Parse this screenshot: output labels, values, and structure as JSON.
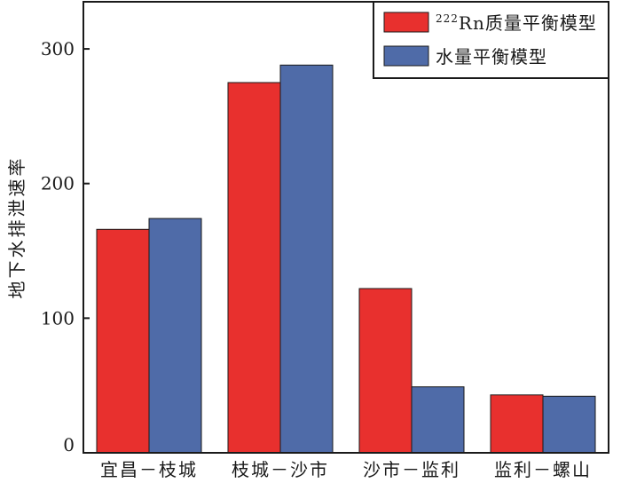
{
  "chart_data": {
    "type": "bar",
    "categories": [
      "宜昌－枝城",
      "枝城－沙市",
      "沙市－监利",
      "监利－螺山"
    ],
    "series": [
      {
        "name": "²²²Rn质量平衡模型",
        "name_sup": "222",
        "name_main": "Rn质量平衡模型",
        "color": "#e8302e",
        "values": [
          166,
          275,
          122,
          43
        ]
      },
      {
        "name": "水量平衡模型",
        "name_main": "水量平衡模型",
        "color": "#4f6ba8",
        "values": [
          174,
          288,
          49,
          42
        ]
      }
    ],
    "title": "",
    "xlabel": "",
    "ylabel": "地下水排泄速率",
    "ylim": [
      0,
      335
    ],
    "yticks": [
      0,
      100,
      200,
      300
    ],
    "ytick_labels": [
      "0",
      "100",
      "200",
      "300"
    ],
    "grid": false,
    "legend_position": "top-right"
  }
}
